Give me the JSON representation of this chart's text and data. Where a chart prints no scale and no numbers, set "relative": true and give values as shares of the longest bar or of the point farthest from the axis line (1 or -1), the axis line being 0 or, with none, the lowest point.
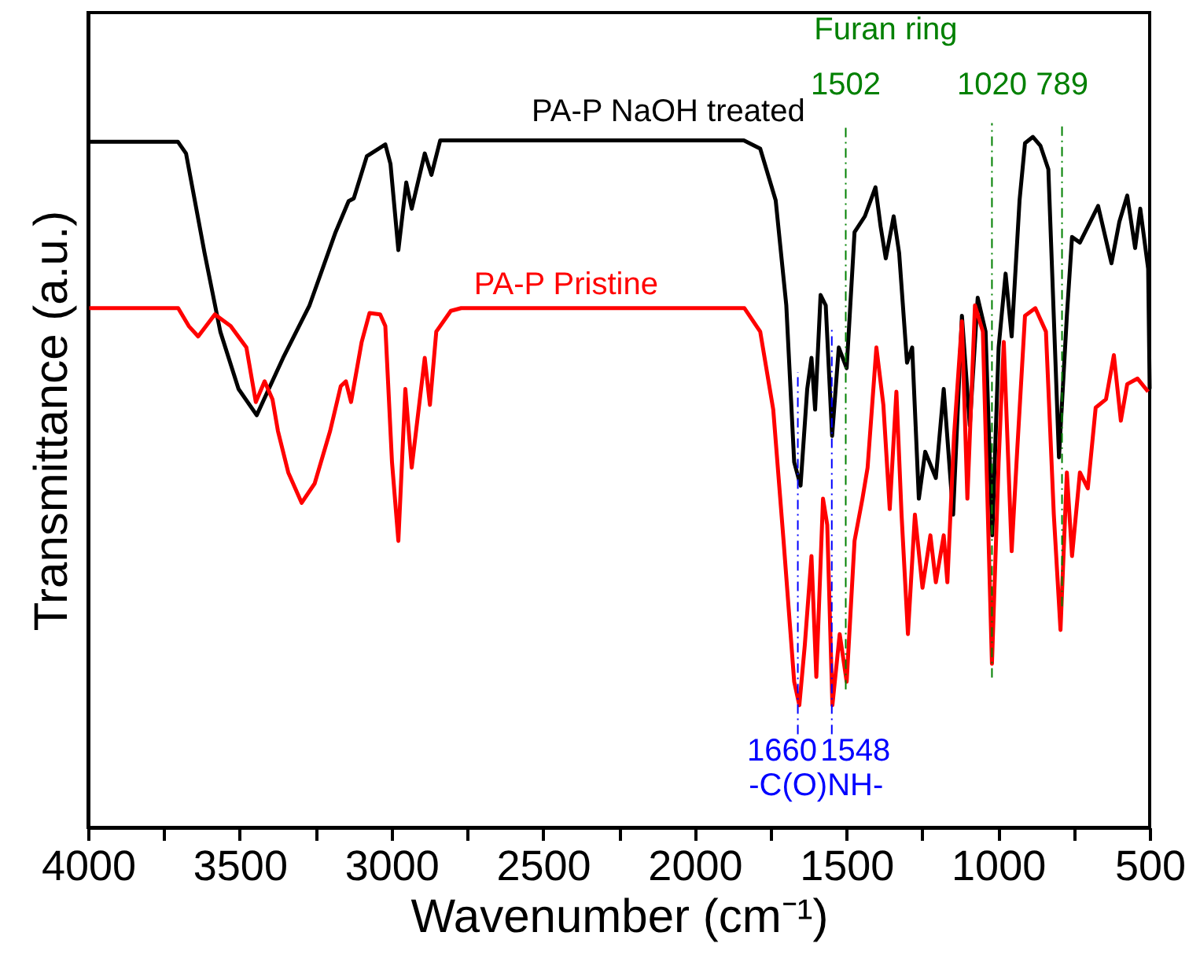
{
  "chart_data": {
    "type": "line",
    "relative": true,
    "xlabel": "Wavenumber (cm⁻¹)",
    "ylabel": "Transmittance (a.u.)",
    "xlim": [
      4000,
      500
    ],
    "xticks": [
      4000,
      {
        "value": 3750,
        "label": null
      },
      3500,
      {
        "value": 3250,
        "label": null
      },
      3000,
      {
        "value": 2750,
        "label": null
      },
      2500,
      {
        "value": 2250,
        "label": null
      },
      2000,
      {
        "value": 1750,
        "label": null
      },
      1500,
      {
        "value": 1250,
        "label": null
      },
      1000,
      {
        "value": 750,
        "label": null
      },
      500
    ],
    "tick_labels": "x",
    "grid": false,
    "legend": false,
    "line_style": "solid",
    "marker": "none",
    "series": [
      {
        "name": "PA-P NaOH treated",
        "color": "#000000",
        "x": [
          3996,
          3704,
          3677,
          3616,
          3564,
          3504,
          3444,
          3357,
          3270,
          3184,
          3141,
          3124,
          3081,
          3020,
          3003,
          2977,
          2951,
          2933,
          2890,
          2868,
          2839,
          1838,
          1784,
          1733,
          1698,
          1672,
          1651,
          1629,
          1615,
          1603,
          1585,
          1568,
          1547,
          1525,
          1499,
          1473,
          1439,
          1404,
          1387,
          1370,
          1344,
          1326,
          1300,
          1283,
          1261,
          1240,
          1205,
          1179,
          1148,
          1119,
          1093,
          1067,
          1041,
          1019,
          998,
          975,
          955,
          929,
          911,
          885,
          860,
          834,
          799,
          773,
          756,
          730,
          670,
          626,
          600,
          574,
          548,
          531,
          505,
          500
        ],
        "values": [
          0.993,
          0.993,
          0.976,
          0.832,
          0.718,
          0.635,
          0.597,
          0.68,
          0.756,
          0.862,
          0.907,
          0.911,
          0.972,
          0.989,
          0.961,
          0.836,
          0.934,
          0.896,
          0.976,
          0.945,
          0.995,
          0.995,
          0.983,
          0.908,
          0.756,
          0.529,
          0.495,
          0.635,
          0.68,
          0.605,
          0.771,
          0.756,
          0.567,
          0.695,
          0.665,
          0.862,
          0.885,
          0.927,
          0.87,
          0.824,
          0.885,
          0.832,
          0.673,
          0.695,
          0.476,
          0.544,
          0.506,
          0.635,
          0.453,
          0.741,
          0.582,
          0.767,
          0.718,
          0.423,
          0.695,
          0.802,
          0.711,
          0.908,
          0.991,
          1,
          0.987,
          0.953,
          0.536,
          0.741,
          0.855,
          0.847,
          0.9,
          0.817,
          0.877,
          0.915,
          0.839,
          0.896,
          0.809,
          0.635
        ]
      },
      {
        "name": "PA-P Pristine",
        "color": "#ff0000",
        "x": [
          3996,
          3703,
          3668,
          3637,
          3582,
          3530,
          3478,
          3447,
          3418,
          3392,
          3374,
          3340,
          3296,
          3253,
          3202,
          3167,
          3150,
          3133,
          3098,
          3072,
          3037,
          3020,
          2998,
          2977,
          2954,
          2933,
          2890,
          2873,
          2852,
          2804,
          2770,
          2216,
          1836,
          1784,
          1741,
          1707,
          1672,
          1655,
          1637,
          1615,
          1599,
          1577,
          1563,
          1546,
          1522,
          1499,
          1473,
          1447,
          1430,
          1401,
          1378,
          1357,
          1335,
          1318,
          1297,
          1274,
          1249,
          1223,
          1205,
          1179,
          1167,
          1145,
          1119,
          1101,
          1076,
          1050,
          1020,
          998,
          981,
          955,
          937,
          911,
          877,
          842,
          816,
          794,
          773,
          756,
          730,
          704,
          678,
          644,
          618,
          595,
          574,
          540,
          505
        ],
        "values": [
          0.752,
          0.752,
          0.726,
          0.711,
          0.743,
          0.726,
          0.695,
          0.616,
          0.646,
          0.62,
          0.574,
          0.514,
          0.47,
          0.498,
          0.574,
          0.639,
          0.646,
          0.616,
          0.703,
          0.745,
          0.743,
          0.726,
          0.529,
          0.415,
          0.635,
          0.521,
          0.68,
          0.612,
          0.718,
          0.748,
          0.752,
          0.752,
          0.752,
          0.718,
          0.605,
          0.415,
          0.211,
          0.177,
          0.264,
          0.393,
          0.218,
          0.476,
          0.438,
          0.177,
          0.28,
          0.211,
          0.415,
          0.476,
          0.521,
          0.695,
          0.612,
          0.461,
          0.631,
          0.453,
          0.28,
          0.453,
          0.347,
          0.423,
          0.355,
          0.423,
          0.355,
          0.567,
          0.733,
          0.476,
          0.756,
          0.718,
          0.237,
          0.529,
          0.703,
          0.4,
          0.544,
          0.741,
          0.752,
          0.718,
          0.453,
          0.286,
          0.514,
          0.393,
          0.514,
          0.491,
          0.608,
          0.62,
          0.684,
          0.589,
          0.642,
          0.65,
          0.631
        ]
      }
    ],
    "ref_lines": [
      {
        "axis": "x",
        "value": 1660,
        "label": "1660",
        "color": "#0000ff",
        "line_style": "dashdot"
      },
      {
        "axis": "x",
        "value": 1548,
        "label": "1548",
        "color": "#0000ff",
        "line_style": "dashdot"
      },
      {
        "axis": "x",
        "value": 1502,
        "label": "1502",
        "color": "#008000",
        "line_style": "dashdot"
      },
      {
        "axis": "x",
        "value": 1020,
        "label": "1020",
        "color": "#008000",
        "line_style": "dashdot"
      },
      {
        "axis": "x",
        "value": 789,
        "label": "789",
        "color": "#008000",
        "line_style": "dashdot"
      }
    ],
    "annotations": [
      "Furan ring",
      "-C(O)NH-"
    ]
  }
}
